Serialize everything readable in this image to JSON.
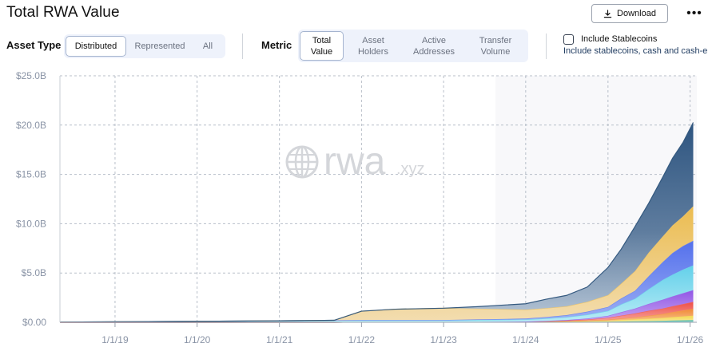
{
  "header": {
    "title": "Total RWA Value",
    "download_label": "Download",
    "more_label": "•••"
  },
  "filters": {
    "asset_type_label": "Asset Type",
    "asset_type_options": [
      "Distributed",
      "Represented",
      "All"
    ],
    "asset_type_selected": "Distributed",
    "metric_label": "Metric",
    "metric_options": [
      [
        "Total",
        "Value"
      ],
      [
        "Asset",
        "Holders"
      ],
      [
        "Active",
        "Addresses"
      ],
      [
        "Transfer",
        "Volume"
      ]
    ],
    "metric_selected": "Total Value",
    "stablecoins_label": "Include Stablecoins",
    "stablecoins_checked": false,
    "stablecoins_description": "Include stablecoins, cash and cash-e"
  },
  "watermark": {
    "main": "rwa",
    "suffix": ".xyz"
  },
  "colors": {
    "navy": "#34597f",
    "gold": "#ecc46a",
    "blue": "#6a84ee",
    "cyan": "#71d5ea",
    "purple": "#9b6ae8",
    "red": "#f0655d",
    "orange": "#f29b4c",
    "yellow": "#f5dc5c",
    "teal": "#5bc2b4"
  },
  "chart_data": {
    "type": "area",
    "stacked": true,
    "x_ticks": [
      "1/1/19",
      "1/1/20",
      "1/1/21",
      "1/1/22",
      "1/1/23",
      "1/1/24",
      "1/1/25",
      "1/1/26"
    ],
    "y_ticks": [
      "$0.00",
      "$5.0B",
      "$10.0B",
      "$15.0B",
      "$20.0B",
      "$25.0B"
    ],
    "ylim": [
      0,
      25
    ],
    "xlim": [
      "2018-05-01",
      "2026-01-31"
    ],
    "grid": true,
    "x": [
      "2018-05-01",
      "2019-01-01",
      "2020-01-01",
      "2021-01-01",
      "2021-09-01",
      "2022-01-01",
      "2022-06-01",
      "2023-01-01",
      "2023-06-01",
      "2024-01-01",
      "2024-04-01",
      "2024-07-01",
      "2024-10-01",
      "2025-01-01",
      "2025-03-01",
      "2025-05-01",
      "2025-07-01",
      "2025-09-01",
      "2025-10-15",
      "2025-12-01",
      "2026-01-15"
    ],
    "series": [
      {
        "color": "teal",
        "values": [
          0,
          0,
          0,
          0,
          0,
          0.03,
          0.03,
          0.03,
          0.03,
          0.03,
          0.05,
          0.05,
          0.05,
          0.06,
          0.08,
          0.1,
          0.12,
          0.15,
          0.18,
          0.2,
          0.22
        ]
      },
      {
        "color": "yellow",
        "values": [
          0,
          0,
          0,
          0,
          0,
          0,
          0,
          0,
          0.01,
          0.02,
          0.03,
          0.05,
          0.08,
          0.1,
          0.15,
          0.2,
          0.25,
          0.3,
          0.35,
          0.4,
          0.45
        ]
      },
      {
        "color": "orange",
        "values": [
          0,
          0,
          0,
          0,
          0,
          0,
          0,
          0,
          0,
          0.01,
          0.02,
          0.03,
          0.05,
          0.1,
          0.15,
          0.2,
          0.3,
          0.4,
          0.5,
          0.6,
          0.7
        ]
      },
      {
        "color": "red",
        "values": [
          0,
          0,
          0,
          0,
          0,
          0,
          0,
          0,
          0,
          0.01,
          0.02,
          0.05,
          0.1,
          0.2,
          0.3,
          0.4,
          0.5,
          0.55,
          0.6,
          0.65,
          0.7
        ]
      },
      {
        "color": "purple",
        "values": [
          0,
          0,
          0,
          0,
          0,
          0,
          0,
          0,
          0,
          0.01,
          0.02,
          0.05,
          0.1,
          0.2,
          0.35,
          0.5,
          0.7,
          0.9,
          1.0,
          1.1,
          1.2
        ]
      },
      {
        "color": "cyan",
        "values": [
          0.02,
          0.05,
          0.1,
          0.15,
          0.2,
          0.2,
          0.2,
          0.2,
          0.2,
          0.2,
          0.25,
          0.3,
          0.4,
          0.5,
          0.8,
          1.0,
          1.5,
          2.0,
          2.2,
          2.4,
          2.5
        ]
      },
      {
        "color": "blue",
        "values": [
          0,
          0,
          0,
          0,
          0,
          0,
          0,
          0,
          0.05,
          0.1,
          0.15,
          0.2,
          0.3,
          0.4,
          0.6,
          0.8,
          1.3,
          1.8,
          2.2,
          2.4,
          2.5
        ]
      },
      {
        "color": "gold",
        "values": [
          0,
          0,
          0,
          0,
          0,
          0.9,
          1.1,
          1.2,
          1.1,
          0.9,
          0.9,
          0.9,
          1.0,
          1.2,
          1.5,
          2.0,
          2.4,
          2.6,
          2.8,
          3.0,
          3.5
        ]
      },
      {
        "color": "navy",
        "values": [
          0,
          0,
          0,
          0,
          0,
          0,
          0,
          0,
          0.2,
          0.6,
          0.9,
          1.1,
          1.5,
          2.8,
          3.5,
          4.5,
          5.0,
          6.0,
          6.8,
          7.5,
          8.5
        ]
      }
    ]
  }
}
